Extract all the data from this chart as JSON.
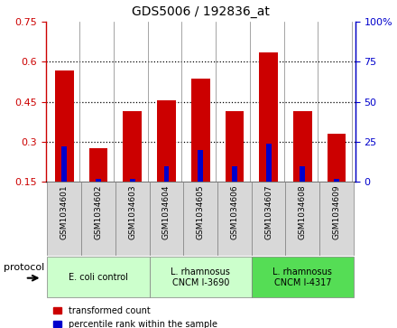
{
  "title": "GDS5006 / 192836_at",
  "samples": [
    "GSM1034601",
    "GSM1034602",
    "GSM1034603",
    "GSM1034604",
    "GSM1034605",
    "GSM1034606",
    "GSM1034607",
    "GSM1034608",
    "GSM1034609"
  ],
  "transformed_count": [
    0.565,
    0.275,
    0.415,
    0.455,
    0.535,
    0.415,
    0.635,
    0.415,
    0.33
  ],
  "percentile_rank": [
    22,
    2,
    2,
    10,
    20,
    10,
    24,
    10,
    2
  ],
  "bar_bottom": 0.15,
  "ylim_left": [
    0.15,
    0.75
  ],
  "ylim_right": [
    0,
    100
  ],
  "yticks_left": [
    0.15,
    0.3,
    0.45,
    0.6,
    0.75
  ],
  "yticks_left_labels": [
    "0.15",
    "0.3",
    "0.45",
    "0.6",
    "0.75"
  ],
  "yticks_right": [
    0,
    25,
    50,
    75,
    100
  ],
  "yticks_right_labels": [
    "0",
    "25",
    "50",
    "75",
    "100%"
  ],
  "protocols": [
    {
      "label": "E. coli control",
      "start": 0,
      "end": 3,
      "color": "#ccffcc"
    },
    {
      "label": "L. rhamnosus\nCNCM I-3690",
      "start": 3,
      "end": 6,
      "color": "#ccffcc"
    },
    {
      "label": "L. rhamnosus\nCNCM I-4317",
      "start": 6,
      "end": 9,
      "color": "#55dd55"
    }
  ],
  "bar_color": "#cc0000",
  "percentile_color": "#0000cc",
  "bar_width": 0.55,
  "legend_red": "transformed count",
  "legend_blue": "percentile rank within the sample",
  "protocol_label": "protocol",
  "left_tick_color": "#cc0000",
  "right_tick_color": "#0000cc",
  "grid_yticks": [
    0.3,
    0.45,
    0.6
  ]
}
